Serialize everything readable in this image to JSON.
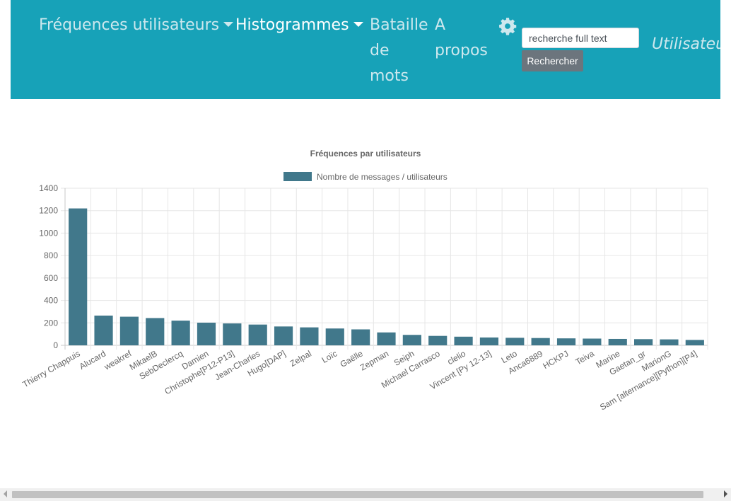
{
  "nav": {
    "freq_label": "Fréquences utilisateurs",
    "histo_label": "Histogrammes",
    "bataille": [
      "Bataille",
      "de",
      "mots"
    ],
    "apropos": [
      "A",
      "propos"
    ],
    "search_placeholder": "recherche full text",
    "search_button": "Rechercher",
    "user_label": "Utilisateur"
  },
  "colors": {
    "navbar": "#17a2b8",
    "bar": "#41788b",
    "button": "#6c757d"
  },
  "chart_data": {
    "type": "bar",
    "title": "Fréquences par utilisateurs",
    "xlabel": "",
    "ylabel": "",
    "ylim": [
      0,
      1400
    ],
    "yticks": [
      0,
      200,
      400,
      600,
      800,
      1000,
      1200,
      1400
    ],
    "grid": true,
    "legend_position": "top",
    "categories": [
      "Thierry Chappuis",
      "Alucard",
      "weakref",
      "MikaelB",
      "SebDeclercq",
      "Damien",
      "Christophe[P12-P13]",
      "Jean-Charles",
      "Hugo[DAP]",
      "Zelpal",
      "Loïc",
      "Gaëlle",
      "Zepman",
      "Seiph",
      "Michael Carrasco",
      "clelio",
      "Vincent [Py 12-13]",
      "Leto",
      "Anca6889",
      "HCKPJ",
      "Teiva",
      "Marine",
      "Gaetan_gr",
      "MarionG",
      "Sam [alternance][Python][P4]"
    ],
    "series": [
      {
        "name": "Nombre de messages / utilisateurs",
        "values": [
          1220,
          265,
          255,
          243,
          220,
          202,
          195,
          185,
          168,
          160,
          150,
          142,
          115,
          93,
          84,
          77,
          70,
          67,
          65,
          62,
          60,
          57,
          55,
          53,
          48
        ]
      }
    ]
  }
}
